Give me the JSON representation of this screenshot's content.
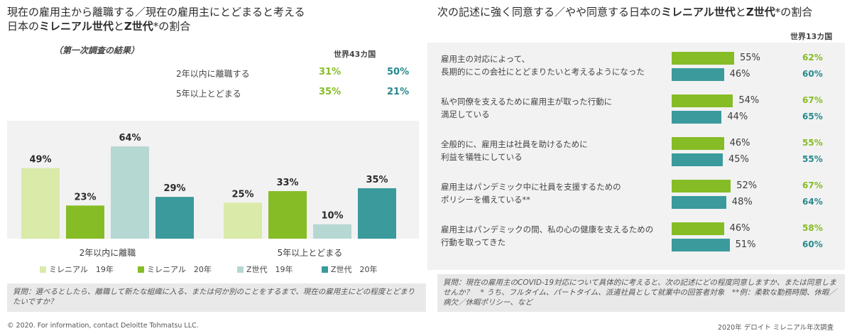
{
  "left": {
    "title_line1": "現在の雇用主から離職する／現在の雇用主にとどまると考える",
    "title_line2_a": "日本の",
    "title_line2_b": "ミレニアル世代",
    "title_line2_c": "と",
    "title_line2_d": "Z世代",
    "title_line2_e": "*の割合",
    "survey_note": "（第一次調査の結果）",
    "world_header": "世界43カ国",
    "summary_rows": [
      {
        "label": "2年以内に離職する",
        "japan": "31%",
        "world": "50%"
      },
      {
        "label": "5年以上とどまる",
        "japan": "35%",
        "world": "21%"
      }
    ],
    "note": "質問：選べるとしたら、離職して新たな組織に入る、または何か別のことをするまで、現在の雇用主にどの程度とどまりたいですか？"
  },
  "right": {
    "title_a": "次の記述に強く同意する／やや同意する日本の",
    "title_b": "ミレニアル世代",
    "title_c": "と",
    "title_d": "Z世代",
    "title_e": "*の割合",
    "world_header": "世界13カ国",
    "note": "質問：現在の雇用主のCOVID-19対応について具体的に考えると、次の記述にどの程度同意しますか、または同意しませんか？　* うち、フルタイム、パートタイム、派遣社員として就業中の回答者対象　**例：柔軟な勤務時間、休暇／病欠／休暇ポリシー、など"
  },
  "chart_data": [
    {
      "type": "bar",
      "categories": [
        "2年以内に離職",
        "5年以上とどまる"
      ],
      "series": [
        {
          "name": "ミレニアル　19年",
          "values": [
            49,
            25
          ],
          "labels": [
            "49%",
            "25%"
          ],
          "color": "#d9eaa9"
        },
        {
          "name": "ミレニアル　20年",
          "values": [
            23,
            33
          ],
          "labels": [
            "23%",
            "33%"
          ],
          "color": "#86bc25"
        },
        {
          "name": "Z世代　19年",
          "values": [
            64,
            10
          ],
          "labels": [
            "64%",
            "10%"
          ],
          "color": "#b6d8d3"
        },
        {
          "name": "Z世代　20年",
          "values": [
            29,
            35
          ],
          "labels": [
            "29%",
            "35%"
          ],
          "color": "#3a9a9c"
        }
      ],
      "ylim": [
        0,
        70
      ],
      "legend": "bottom"
    },
    {
      "type": "bar",
      "orientation": "horizontal",
      "categories": [
        "雇用主の対応によって、\n長期的にこの会社にとどまりたいと考えるようになった",
        "私や同僚を支えるために雇用主が取った行動に\n満足している",
        "全般的に、雇用主は社員を助けるために\n利益を犠牲にしている",
        "雇用主はパンデミック中に社員を支援するための\nポリシーを備えている**",
        "雇用主はパンデミックの間、私の心の健康を支えるための\n行動を取ってきた"
      ],
      "series": [
        {
          "values": [
            55,
            54,
            46,
            52,
            46
          ],
          "labels": [
            "55%",
            "54%",
            "46%",
            "52%",
            "46%"
          ],
          "world": [
            "62%",
            "67%",
            "55%",
            "67%",
            "58%"
          ],
          "color": "#86bc25"
        },
        {
          "values": [
            46,
            44,
            45,
            48,
            51
          ],
          "labels": [
            "46%",
            "44%",
            "45%",
            "48%",
            "51%"
          ],
          "world": [
            "60%",
            "65%",
            "55%",
            "64%",
            "60%"
          ],
          "color": "#3a9a9c"
        }
      ],
      "xlim": [
        0,
        100
      ]
    }
  ],
  "footer": {
    "left": "©  2020. For information, contact Deloitte Tohmatsu LLC.",
    "right": "2020年 デロイト ミレニアル年次調査"
  }
}
